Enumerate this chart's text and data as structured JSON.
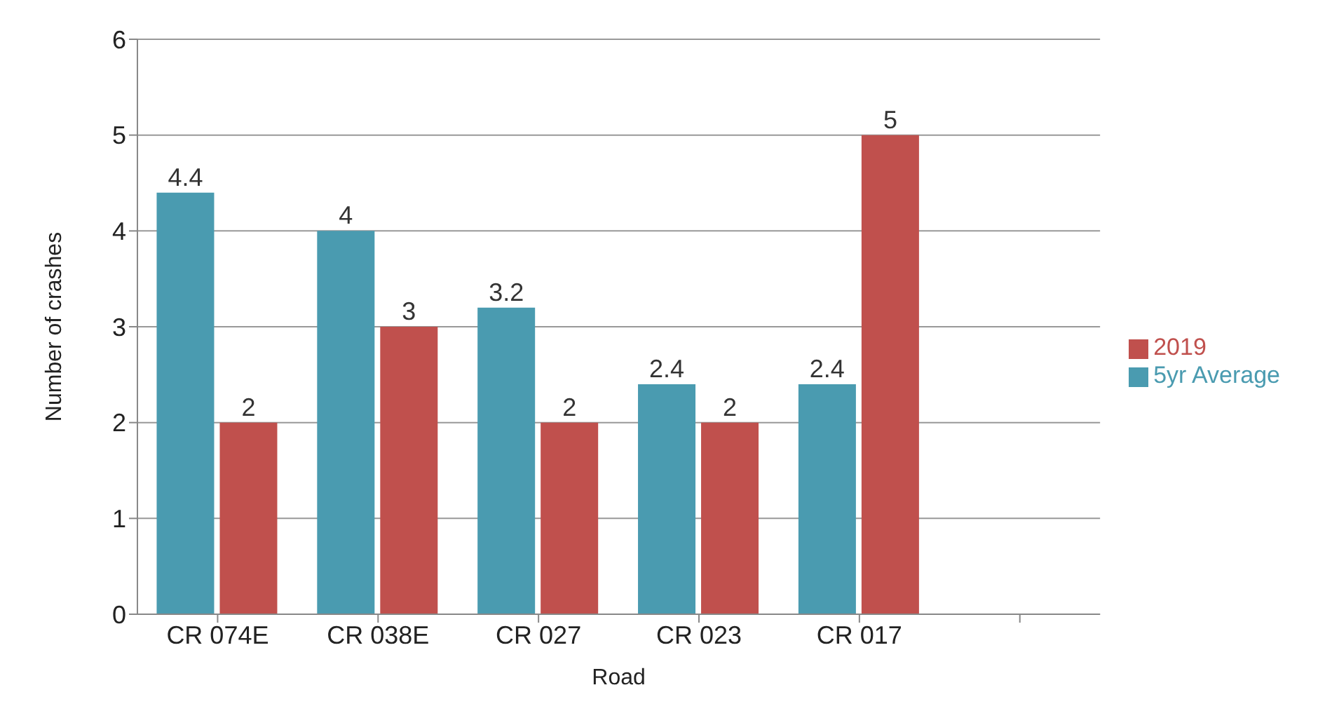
{
  "chart_data": {
    "type": "bar",
    "xlabel": "Road",
    "ylabel": "Number of crashes",
    "categories": [
      "CR 074E",
      "CR 038E",
      "CR 027",
      "CR 023",
      "CR 017",
      null
    ],
    "series": [
      {
        "name": "5yr Average",
        "color": "#4a9bb0",
        "values": [
          4.4,
          4,
          3.2,
          2.4,
          2.4,
          null
        ]
      },
      {
        "name": "2019",
        "color": "#c0504d",
        "values": [
          2,
          3,
          2,
          2,
          5,
          null
        ]
      }
    ],
    "ylim": [
      0,
      6
    ],
    "yticks": [
      0,
      1,
      2,
      3,
      4,
      5,
      6
    ],
    "grid": "y",
    "legend": "right",
    "data_labels": true
  }
}
